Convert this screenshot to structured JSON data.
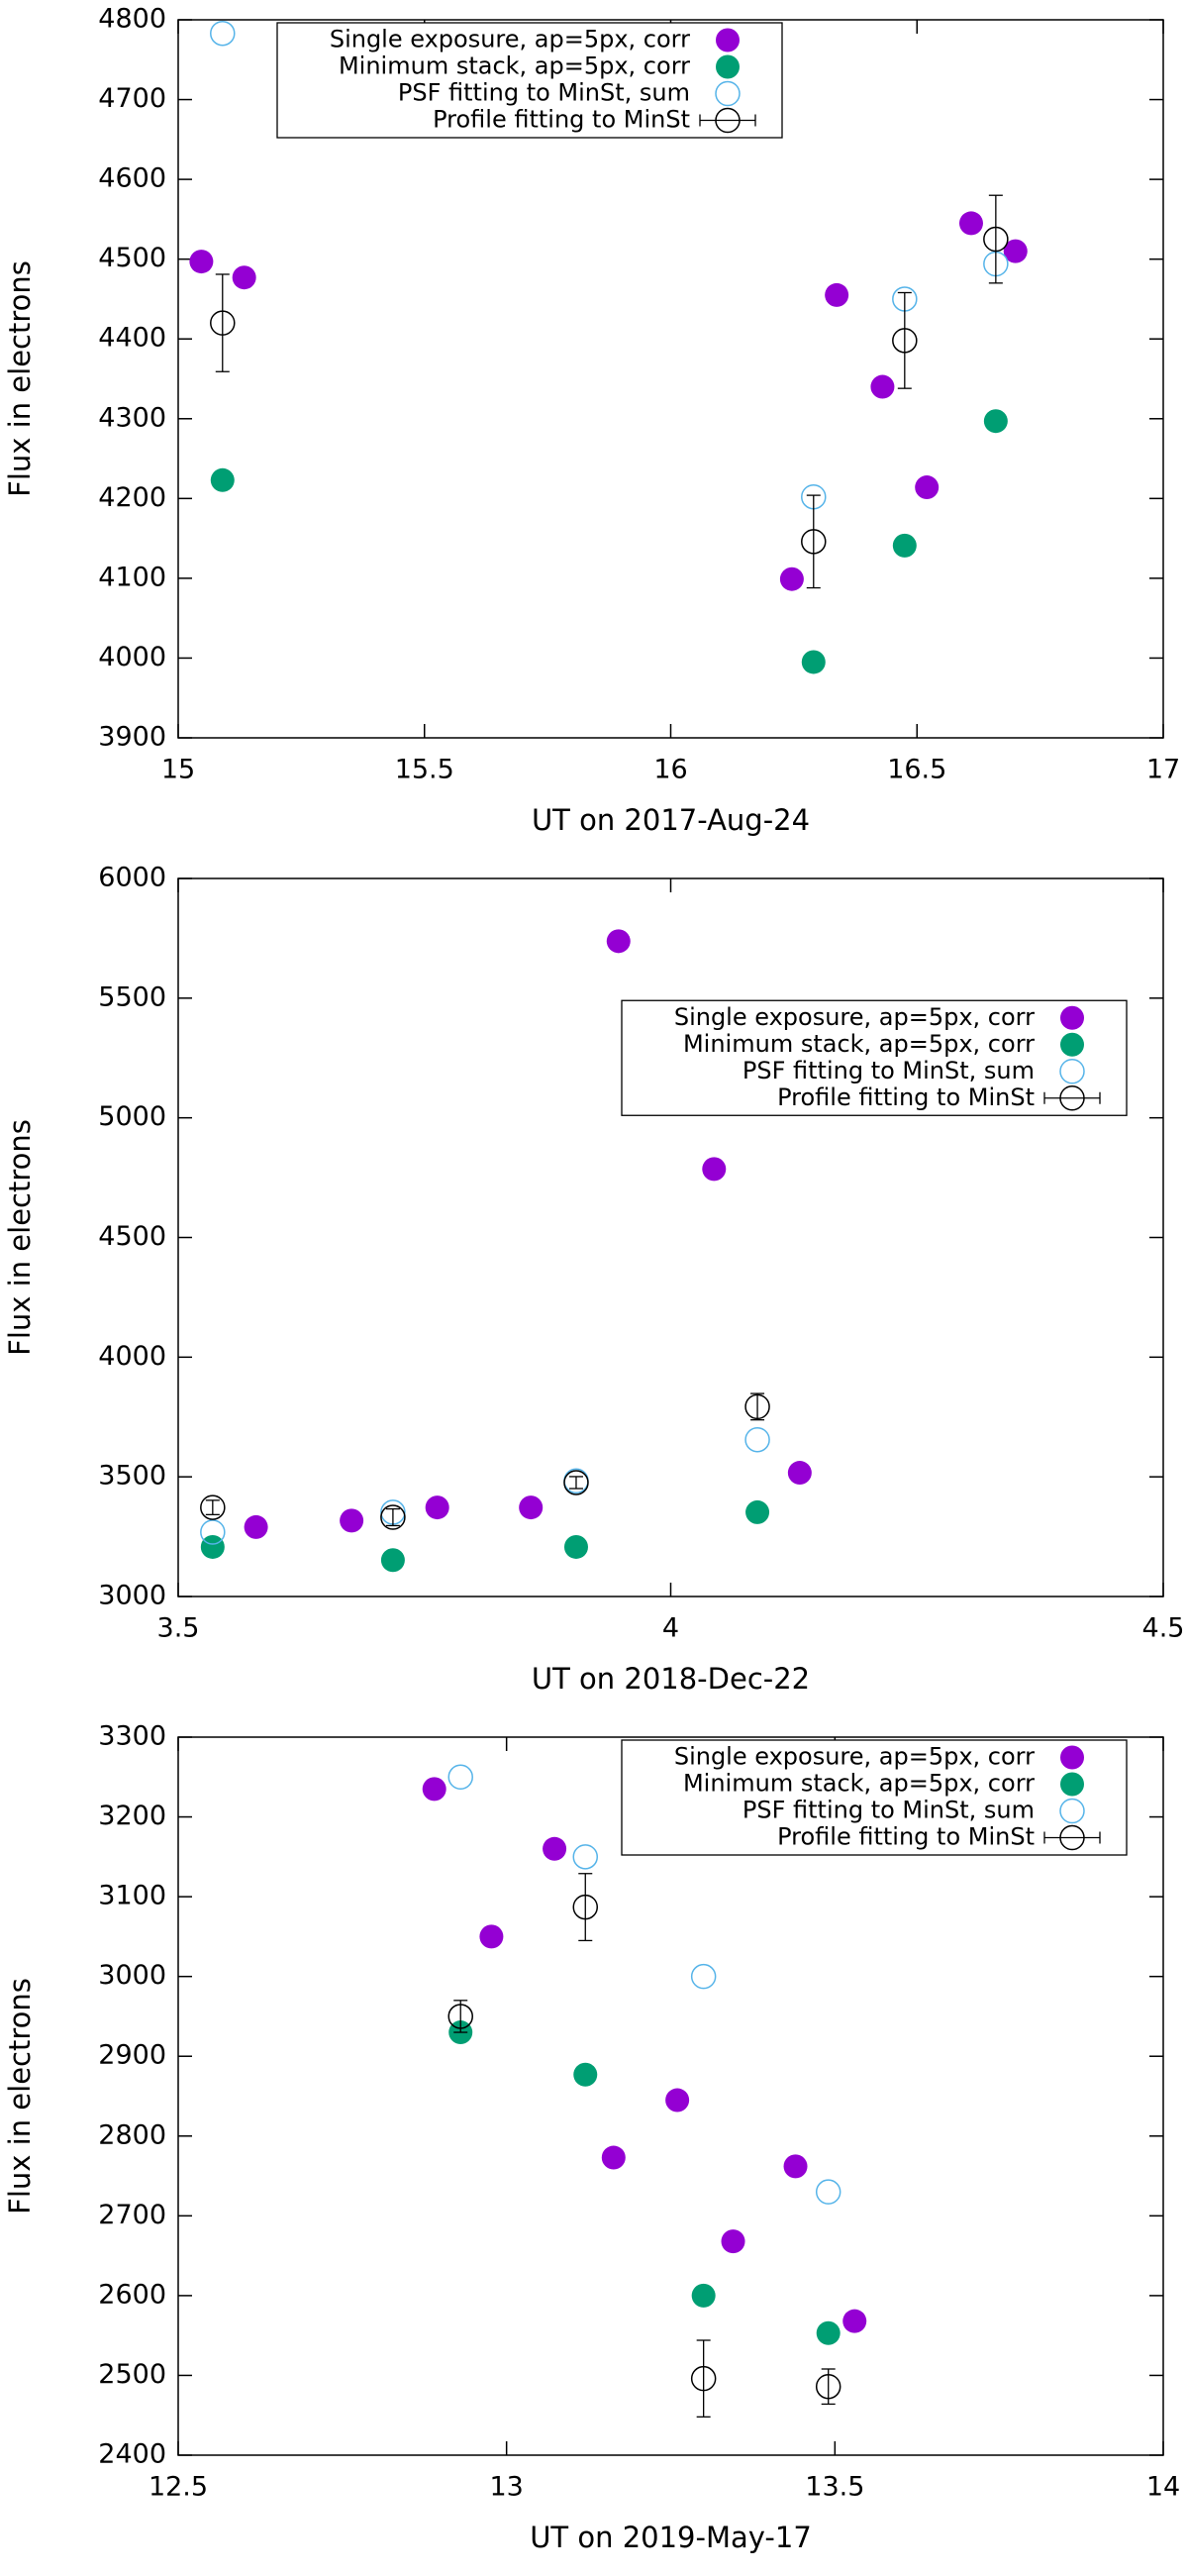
{
  "chart_data": [
    {
      "type": "scatter",
      "xlabel": "UT on 2017-Aug-24",
      "ylabel": "Flux in electrons",
      "xlim": [
        15,
        17
      ],
      "ylim": [
        3900,
        4800
      ],
      "xticks": [
        15,
        15.5,
        16,
        16.5,
        17
      ],
      "yticks": [
        3900,
        4000,
        4100,
        4200,
        4300,
        4400,
        4500,
        4600,
        4700,
        4800
      ],
      "legend": "top-left",
      "series": [
        {
          "name": "Single exposure, ap=5px, corr",
          "color": "#9400d3",
          "marker": "filled",
          "x": [
            15.047,
            15.134,
            16.246,
            16.337,
            16.43,
            16.52,
            16.61,
            16.7
          ],
          "values": [
            4497,
            4477,
            4099,
            4455,
            4340,
            4214,
            4545,
            4510
          ]
        },
        {
          "name": "Minimum stack, ap=5px, corr",
          "color": "#009e73",
          "marker": "filled",
          "x": [
            15.09,
            16.29,
            16.475,
            16.66
          ],
          "values": [
            4223,
            3995,
            4141,
            4297
          ]
        },
        {
          "name": "PSF fitting to MinSt, sum",
          "color": "#56b4e9",
          "marker": "open",
          "x": [
            15.09,
            16.29,
            16.475,
            16.66
          ],
          "values": [
            4783,
            4202,
            4450,
            4494
          ]
        },
        {
          "name": "Profile fitting to MinSt",
          "color": "#000000",
          "marker": "errorbar",
          "x": [
            15.09,
            16.29,
            16.475,
            16.66
          ],
          "values": [
            4420,
            4146,
            4398,
            4525
          ],
          "errors": [
            61,
            58,
            60,
            55
          ]
        }
      ]
    },
    {
      "type": "scatter",
      "xlabel": "UT on 2018-Dec-22",
      "ylabel": "Flux in electrons",
      "xlim": [
        3.5,
        4.5
      ],
      "ylim": [
        3000,
        6000
      ],
      "xticks": [
        3.5,
        4,
        4.5
      ],
      "yticks": [
        3000,
        3500,
        4000,
        4500,
        5000,
        5500,
        6000
      ],
      "legend": "center-right",
      "series": [
        {
          "name": "Single exposure, ap=5px, corr",
          "color": "#9400d3",
          "marker": "filled",
          "x": [
            3.579,
            3.676,
            3.763,
            3.858,
            3.947,
            4.044,
            4.131
          ],
          "values": [
            3290,
            3317,
            3372,
            3372,
            5738,
            4786,
            3517
          ]
        },
        {
          "name": "Minimum stack, ap=5px, corr",
          "color": "#009e73",
          "marker": "filled",
          "x": [
            3.535,
            3.718,
            3.904,
            4.088
          ],
          "values": [
            3207,
            3152,
            3207,
            3352
          ]
        },
        {
          "name": "PSF fitting to MinSt, sum",
          "color": "#56b4e9",
          "marker": "open",
          "x": [
            3.535,
            3.718,
            3.904,
            4.088
          ],
          "values": [
            3269,
            3352,
            3483,
            3655
          ]
        },
        {
          "name": "Profile fitting to MinSt",
          "color": "#000000",
          "marker": "errorbar",
          "x": [
            3.535,
            3.718,
            3.904,
            4.088
          ],
          "values": [
            3372,
            3331,
            3476,
            3793
          ],
          "errors": [
            30,
            35,
            25,
            55
          ]
        }
      ]
    },
    {
      "type": "scatter",
      "xlabel": "UT on 2019-May-17",
      "ylabel": "Flux in electrons",
      "xlim": [
        12.5,
        14
      ],
      "ylim": [
        2400,
        3300
      ],
      "xticks": [
        12.5,
        13,
        13.5,
        14
      ],
      "yticks": [
        2400,
        2500,
        2600,
        2700,
        2800,
        2900,
        3000,
        3100,
        3200,
        3300
      ],
      "legend": "top-right",
      "series": [
        {
          "name": "Single exposure, ap=5px, corr",
          "color": "#9400d3",
          "marker": "filled",
          "x": [
            12.89,
            12.977,
            13.073,
            13.163,
            13.26,
            13.345,
            13.44,
            13.53
          ],
          "values": [
            3235,
            3050,
            3160,
            2773,
            2845,
            2668,
            2762,
            2568
          ]
        },
        {
          "name": "Minimum stack, ap=5px, corr",
          "color": "#009e73",
          "marker": "filled",
          "x": [
            12.93,
            13.12,
            13.3,
            13.49
          ],
          "values": [
            2930,
            2877,
            2600,
            2553
          ]
        },
        {
          "name": "PSF fitting to MinSt, sum",
          "color": "#56b4e9",
          "marker": "open",
          "x": [
            12.93,
            13.12,
            13.3,
            13.49
          ],
          "values": [
            3250,
            3150,
            3000,
            2730
          ]
        },
        {
          "name": "Profile fitting to MinSt",
          "color": "#000000",
          "marker": "errorbar",
          "x": [
            12.93,
            13.12,
            13.3,
            13.49
          ],
          "values": [
            2950,
            3087,
            2496,
            2486
          ],
          "errors": [
            20,
            42,
            48,
            22
          ]
        }
      ]
    }
  ]
}
